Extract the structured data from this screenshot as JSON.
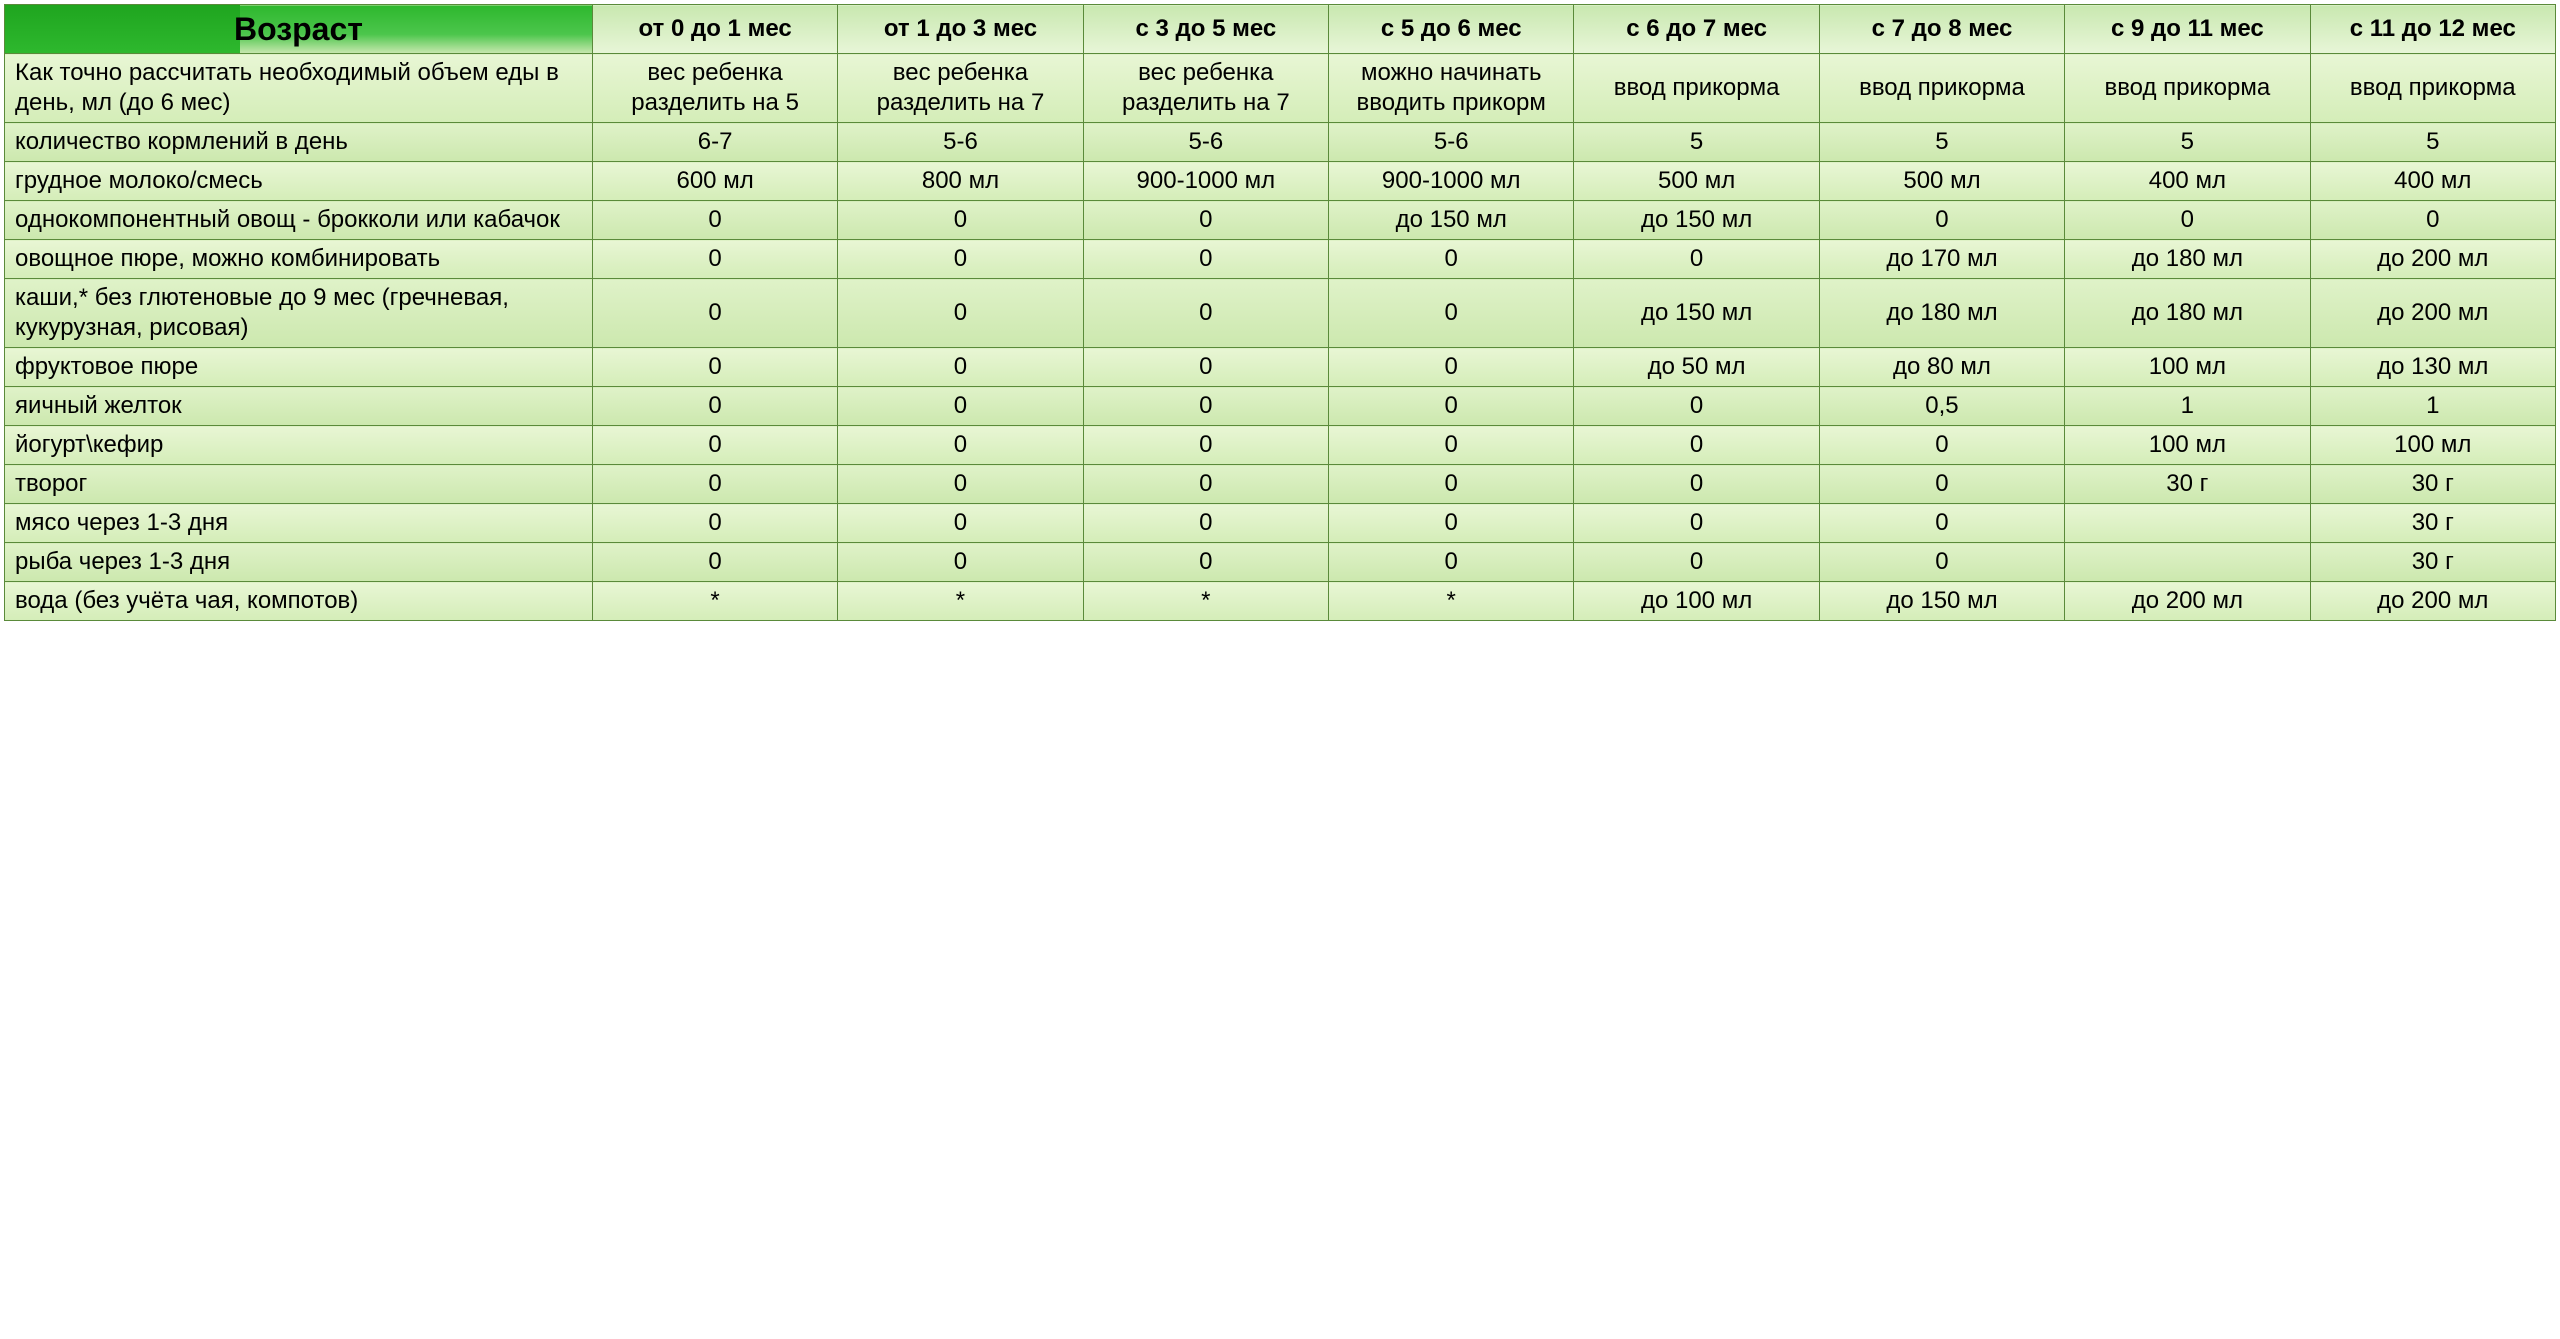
{
  "table": {
    "type": "table",
    "header_label": "Возраст",
    "label_col_width_pct": 23,
    "data_col_width_pct": 9.6,
    "header_bg_gradient": [
      "#2eb82e",
      "#c9e8b0"
    ],
    "header_left_bg": "#1fa51f",
    "col_head_bg_gradient": [
      "#c9e8b0",
      "#e8f6d8"
    ],
    "row_bg_odd": [
      "#e8f6d4",
      "#d4edb8"
    ],
    "row_bg_even": [
      "#dff2c8",
      "#cce8ae"
    ],
    "border_color": "#5a8a3a",
    "header_fontsize": 32,
    "cell_fontsize": 24,
    "columns": [
      "от 0 до 1 мес",
      "от 1 до 3 мес",
      "с 3 до 5 мес",
      "с 5 до 6 мес",
      "с 6 до 7 мес",
      "с 7 до 8 мес",
      "с 9 до 11 мес",
      "с 11 до 12 мес"
    ],
    "rows": [
      {
        "label": "Как точно рассчитать необходимый объем еды в день, мл (до 6 мес)",
        "cells": [
          "вес ребенка разделить на 5",
          "вес ребенка разделить на 7",
          "вес ребенка разделить на 7",
          "можно начинать вводить прикорм",
          "ввод прикорма",
          "ввод прикорма",
          "ввод прикорма",
          "ввод прикорма"
        ]
      },
      {
        "label": "количество кормлений в день",
        "cells": [
          "6-7",
          "5-6",
          "5-6",
          "5-6",
          "5",
          "5",
          "5",
          "5"
        ]
      },
      {
        "label": "грудное молоко/смесь",
        "cells": [
          "600 мл",
          "800 мл",
          "900-1000 мл",
          "900-1000 мл",
          "500 мл",
          "500 мл",
          "400 мл",
          "400 мл"
        ]
      },
      {
        "label": "однокомпонентный овощ - брокколи или кабачок",
        "cells": [
          "0",
          "0",
          "0",
          "до 150 мл",
          "до 150 мл",
          "0",
          "0",
          "0"
        ]
      },
      {
        "label": "овощное пюре, можно комбинировать",
        "cells": [
          "0",
          "0",
          "0",
          "0",
          "0",
          "до 170 мл",
          "до 180 мл",
          "до 200 мл"
        ]
      },
      {
        "label": "каши,* без глютеновые до 9 мес (гречневая, кукурузная, рисовая)",
        "cells": [
          "0",
          "0",
          "0",
          "0",
          "до 150 мл",
          "до 180 мл",
          "до 180 мл",
          "до 200 мл"
        ]
      },
      {
        "label": "фруктовое пюре",
        "cells": [
          "0",
          "0",
          "0",
          "0",
          "до 50 мл",
          "до 80 мл",
          "100 мл",
          "до 130 мл"
        ]
      },
      {
        "label": "яичный желток",
        "cells": [
          "0",
          "0",
          "0",
          "0",
          "0",
          "0,5",
          "1",
          "1"
        ]
      },
      {
        "label": "йогурт\\кефир",
        "cells": [
          "0",
          "0",
          "0",
          "0",
          "0",
          "0",
          "100 мл",
          "100 мл"
        ]
      },
      {
        "label": "творог",
        "cells": [
          "0",
          "0",
          "0",
          "0",
          "0",
          "0",
          "30 г",
          "30 г"
        ]
      },
      {
        "label": "мясо через 1-3 дня",
        "cells": [
          "0",
          "0",
          "0",
          "0",
          "0",
          "0",
          "",
          "30 г"
        ]
      },
      {
        "label": "рыба через 1-3 дня",
        "cells": [
          "0",
          "0",
          "0",
          "0",
          "0",
          "0",
          "",
          "30 г"
        ]
      },
      {
        "label": "вода (без учёта чая, компотов)",
        "cells": [
          "*",
          "*",
          "*",
          "*",
          "до 100 мл",
          "до 150 мл",
          "до 200 мл",
          "до 200 мл"
        ]
      }
    ]
  }
}
